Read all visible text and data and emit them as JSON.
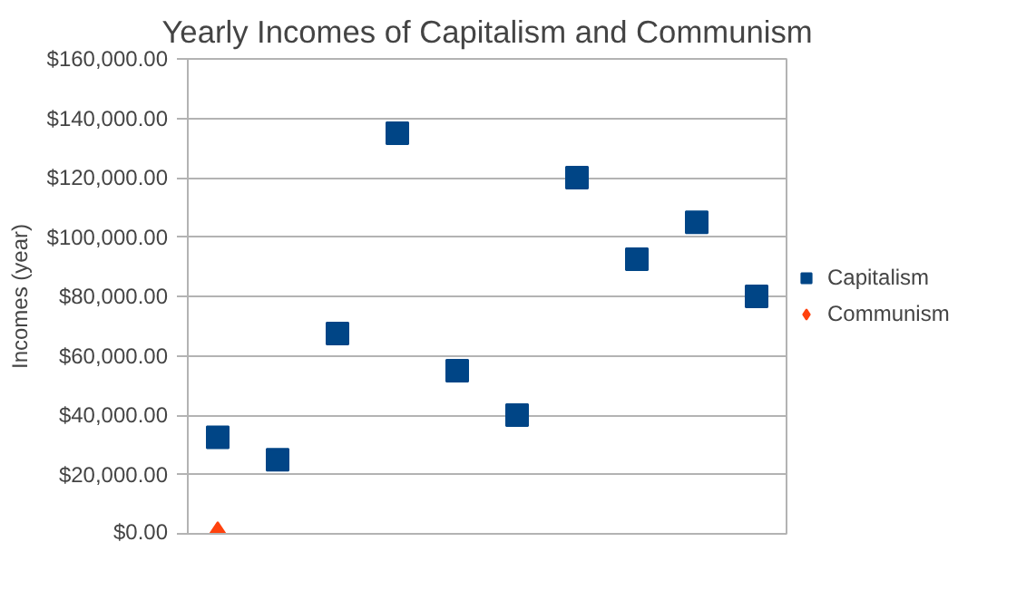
{
  "chart_data": {
    "type": "scatter",
    "title": "Yearly Incomes of Capitalism and Communism",
    "ylabel": "Incomes (year)",
    "categories": [
      null,
      null,
      null,
      null,
      null,
      null,
      null,
      null,
      null,
      null
    ],
    "series": [
      {
        "name": "Capitalism",
        "color": "#004586",
        "marker": "square",
        "values": [
          32500,
          25000,
          67500,
          135000,
          55000,
          40000,
          120000,
          92500,
          105000,
          80000
        ]
      },
      {
        "name": "Communism",
        "color": "#ff420e",
        "marker": "diamond",
        "values": [
          0,
          null,
          null,
          null,
          null,
          null,
          null,
          null,
          null,
          null
        ]
      }
    ],
    "ylim": [
      0,
      160000
    ],
    "yticks": [
      {
        "value": 0,
        "label": "$0.00"
      },
      {
        "value": 20000,
        "label": "$20,000.00"
      },
      {
        "value": 40000,
        "label": "$40,000.00"
      },
      {
        "value": 60000,
        "label": "$60,000.00"
      },
      {
        "value": 80000,
        "label": "$80,000.00"
      },
      {
        "value": 100000,
        "label": "$100,000.00"
      },
      {
        "value": 120000,
        "label": "$120,000.00"
      },
      {
        "value": 140000,
        "label": "$140,000.00"
      },
      {
        "value": 160000,
        "label": "$160,000.00"
      }
    ],
    "grid": "y",
    "legend": "right"
  }
}
